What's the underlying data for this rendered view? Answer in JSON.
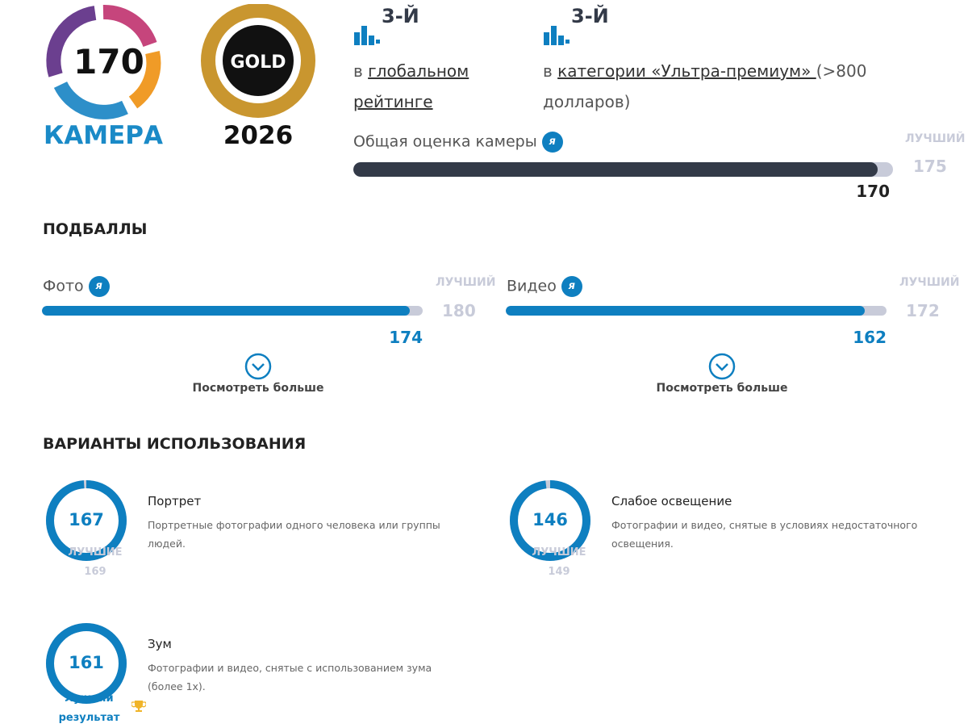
{
  "badge": {
    "score": 170,
    "label": "КАМЕРА"
  },
  "award": {
    "label": "GOLD",
    "year": "2026"
  },
  "rankings": [
    {
      "rank": "3-Й",
      "prefix": "в",
      "link": "глобальном рейтинге"
    },
    {
      "rank": "3-Й",
      "prefix": "в",
      "link": "категории «Ультра-премиум» ",
      "suffix": "(>800 долларов)"
    }
  ],
  "overall": {
    "label": "Общая оценка камеры",
    "info": "я",
    "best_label": "ЛУЧШИЙ",
    "best": 175,
    "score": 170
  },
  "subscores": {
    "title": "ПОДБАЛЛЫ",
    "items": [
      {
        "label": "Фото",
        "info": "я",
        "best_label": "ЛУЧШИЙ",
        "best": 180,
        "score": 174,
        "more": "Посмотреть больше"
      },
      {
        "label": "Видео",
        "info": "я",
        "best_label": "ЛУЧШИЙ",
        "best": 172,
        "score": 162,
        "more": "Посмотреть больше"
      }
    ]
  },
  "use_cases": {
    "title": "ВАРИАНТЫ ИСПОЛЬЗОВАНИЯ",
    "items": [
      {
        "score": 167,
        "name": "Портрет",
        "description": "Портретные фотографии одного человека или группы людей.",
        "best_label": "ЛУЧШИЕ",
        "best": 169
      },
      {
        "score": 146,
        "name": "Слабое освещение",
        "description": "Фотографии и видео, снятые в условиях недостаточного освещения.",
        "best_label": "ЛУЧШИЕ",
        "best": 149
      },
      {
        "score": 161,
        "name": "Зум",
        "description": "Фотографии и видео, снятые с использованием зума (более 1x).",
        "best_label": "Лучший результат"
      }
    ]
  }
}
